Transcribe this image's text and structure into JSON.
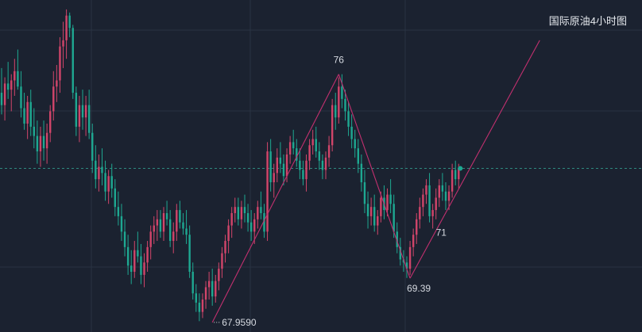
{
  "chart_data": {
    "type": "candlestick",
    "title": "国际原油4小时图",
    "colors": {
      "background": "#1b2230",
      "grid": "#2a3342",
      "up": "#d1456a",
      "down": "#1ea891",
      "trendline": "#c2306f",
      "price_line": "#2e8a7f",
      "text": "#d5d9e0"
    },
    "ylim": [
      67.7,
      78.2
    ],
    "current_price": 72.95,
    "annotations": [
      {
        "text": "67.9590",
        "index": 65
      },
      {
        "text": "76",
        "index": 104
      },
      {
        "text": "69.39",
        "index": 126
      },
      {
        "text": "71",
        "index": 133
      }
    ],
    "trendlines": [
      {
        "from": [
          65,
          67.96
        ],
        "to": [
          104,
          76.0
        ]
      },
      {
        "from": [
          104,
          76.0
        ],
        "to": [
          126,
          69.39
        ]
      },
      {
        "from": [
          126,
          69.39
        ],
        "to": [
          166,
          77.1
        ]
      }
    ],
    "candles": [
      [
        75.4,
        76.2,
        74.7,
        75.0
      ],
      [
        75.0,
        75.9,
        74.5,
        75.7
      ],
      [
        75.7,
        76.4,
        75.2,
        75.5
      ],
      [
        75.5,
        76.0,
        74.8,
        75.8
      ],
      [
        75.8,
        76.5,
        75.3,
        76.1
      ],
      [
        76.1,
        76.8,
        75.5,
        75.6
      ],
      [
        75.6,
        76.1,
        74.6,
        74.9
      ],
      [
        74.9,
        75.4,
        74.2,
        74.4
      ],
      [
        74.4,
        75.3,
        73.9,
        75.1
      ],
      [
        75.1,
        75.5,
        74.0,
        74.3
      ],
      [
        74.3,
        74.9,
        73.6,
        74.0
      ],
      [
        74.0,
        74.5,
        73.1,
        73.5
      ],
      [
        73.5,
        74.3,
        73.0,
        74.0
      ],
      [
        74.0,
        74.5,
        73.2,
        73.6
      ],
      [
        73.6,
        74.4,
        73.1,
        74.1
      ],
      [
        74.1,
        75.0,
        73.8,
        74.8
      ],
      [
        74.8,
        76.1,
        74.5,
        75.6
      ],
      [
        75.6,
        76.3,
        75.1,
        75.8
      ],
      [
        75.8,
        77.2,
        75.4,
        76.9
      ],
      [
        76.9,
        77.7,
        76.2,
        77.1
      ],
      [
        77.1,
        78.1,
        76.5,
        77.9
      ],
      [
        77.9,
        78.0,
        77.2,
        77.5
      ],
      [
        77.5,
        77.6,
        75.2,
        75.4
      ],
      [
        75.4,
        75.6,
        74.0,
        74.3
      ],
      [
        74.3,
        75.3,
        73.8,
        75.0
      ],
      [
        75.0,
        75.5,
        74.2,
        74.6
      ],
      [
        74.6,
        75.3,
        74.0,
        75.0
      ],
      [
        75.0,
        75.5,
        73.9,
        74.1
      ],
      [
        74.1,
        74.4,
        72.8,
        73.2
      ],
      [
        73.2,
        73.7,
        72.3,
        72.6
      ],
      [
        72.6,
        73.4,
        72.2,
        73.0
      ],
      [
        73.0,
        73.6,
        72.4,
        72.8
      ],
      [
        72.8,
        73.2,
        71.9,
        72.2
      ],
      [
        72.2,
        72.9,
        71.8,
        72.7
      ],
      [
        72.7,
        73.1,
        72.0,
        72.3
      ],
      [
        72.3,
        72.6,
        71.4,
        71.7
      ],
      [
        71.7,
        72.2,
        71.1,
        71.4
      ],
      [
        71.4,
        71.8,
        70.6,
        70.9
      ],
      [
        70.9,
        71.3,
        70.1,
        70.4
      ],
      [
        70.4,
        70.8,
        69.5,
        69.8
      ],
      [
        69.8,
        70.3,
        69.2,
        69.6
      ],
      [
        69.6,
        70.6,
        69.4,
        70.3
      ],
      [
        70.3,
        70.9,
        69.9,
        70.1
      ],
      [
        70.1,
        70.5,
        69.2,
        69.5
      ],
      [
        69.5,
        70.2,
        69.1,
        69.9
      ],
      [
        69.9,
        70.6,
        69.6,
        70.4
      ],
      [
        70.4,
        71.1,
        70.0,
        70.9
      ],
      [
        70.9,
        71.4,
        70.5,
        71.1
      ],
      [
        71.1,
        71.6,
        70.6,
        71.3
      ],
      [
        71.3,
        71.6,
        70.7,
        70.9
      ],
      [
        70.9,
        71.7,
        70.6,
        71.5
      ],
      [
        71.5,
        71.9,
        71.1,
        71.3
      ],
      [
        71.3,
        71.6,
        70.4,
        70.6
      ],
      [
        70.6,
        71.2,
        70.2,
        70.9
      ],
      [
        70.9,
        71.8,
        70.6,
        71.6
      ],
      [
        71.6,
        71.9,
        71.0,
        71.2
      ],
      [
        71.2,
        71.5,
        70.8,
        71.0
      ],
      [
        71.0,
        71.6,
        70.5,
        70.8
      ],
      [
        70.8,
        71.1,
        69.4,
        69.6
      ],
      [
        69.6,
        69.9,
        68.7,
        68.9
      ],
      [
        68.9,
        69.2,
        68.3,
        68.6
      ],
      [
        68.6,
        68.9,
        68.0,
        68.3
      ],
      [
        68.3,
        68.9,
        68.1,
        68.7
      ],
      [
        68.7,
        69.3,
        68.4,
        69.1
      ],
      [
        69.1,
        69.6,
        68.7,
        69.3
      ],
      [
        69.3,
        69.7,
        68.5,
        68.8
      ],
      [
        68.8,
        69.5,
        68.6,
        69.3
      ],
      [
        69.3,
        69.9,
        69.0,
        69.7
      ],
      [
        69.7,
        70.4,
        69.4,
        70.2
      ],
      [
        70.2,
        70.8,
        69.9,
        70.6
      ],
      [
        70.6,
        71.3,
        70.2,
        71.1
      ],
      [
        71.1,
        71.7,
        70.7,
        71.5
      ],
      [
        71.5,
        72.0,
        71.2,
        71.7
      ],
      [
        71.7,
        72.0,
        71.1,
        71.3
      ],
      [
        71.3,
        71.9,
        71.0,
        71.7
      ],
      [
        71.7,
        72.1,
        71.2,
        71.5
      ],
      [
        71.5,
        71.8,
        70.9,
        71.2
      ],
      [
        71.2,
        71.6,
        70.6,
        70.9
      ],
      [
        70.9,
        71.5,
        70.5,
        71.3
      ],
      [
        71.3,
        71.9,
        71.0,
        71.7
      ],
      [
        71.7,
        72.2,
        71.3,
        71.5
      ],
      [
        71.5,
        71.8,
        70.7,
        70.9
      ],
      [
        70.9,
        73.8,
        70.6,
        73.5
      ],
      [
        73.5,
        73.9,
        72.2,
        72.5
      ],
      [
        72.5,
        73.1,
        72.0,
        72.8
      ],
      [
        72.8,
        73.6,
        72.5,
        73.3
      ],
      [
        73.3,
        73.8,
        72.8,
        73.1
      ],
      [
        73.1,
        73.4,
        72.4,
        72.7
      ],
      [
        72.7,
        73.6,
        72.5,
        73.4
      ],
      [
        73.4,
        74.0,
        73.1,
        73.8
      ],
      [
        73.8,
        74.2,
        73.4,
        73.6
      ],
      [
        73.6,
        73.9,
        73.0,
        73.2
      ],
      [
        73.2,
        73.6,
        72.6,
        72.9
      ],
      [
        72.9,
        73.2,
        72.4,
        72.6
      ],
      [
        72.6,
        73.4,
        72.2,
        73.2
      ],
      [
        73.2,
        73.9,
        72.9,
        73.7
      ],
      [
        73.7,
        74.2,
        73.4,
        73.9
      ],
      [
        73.9,
        74.3,
        73.3,
        73.5
      ],
      [
        73.5,
        73.8,
        72.9,
        73.2
      ],
      [
        73.2,
        73.4,
        72.6,
        72.9
      ],
      [
        72.9,
        73.5,
        72.6,
        73.3
      ],
      [
        73.3,
        74.0,
        73.0,
        73.7
      ],
      [
        73.7,
        75.2,
        73.5,
        75.0
      ],
      [
        75.0,
        75.4,
        74.2,
        74.6
      ],
      [
        74.6,
        75.9,
        74.4,
        75.6
      ],
      [
        75.6,
        76.0,
        74.9,
        75.2
      ],
      [
        75.2,
        75.5,
        74.5,
        74.8
      ],
      [
        74.8,
        75.1,
        74.0,
        74.3
      ],
      [
        74.3,
        74.7,
        73.6,
        73.9
      ],
      [
        73.9,
        74.2,
        73.3,
        73.6
      ],
      [
        73.6,
        73.9,
        72.8,
        73.1
      ],
      [
        73.1,
        73.4,
        72.2,
        72.5
      ],
      [
        72.5,
        72.9,
        71.5,
        71.8
      ],
      [
        71.8,
        72.2,
        71.0,
        71.4
      ],
      [
        71.4,
        72.0,
        71.1,
        71.7
      ],
      [
        71.7,
        72.1,
        70.9,
        71.1
      ],
      [
        71.1,
        71.6,
        70.8,
        71.4
      ],
      [
        71.4,
        72.2,
        71.2,
        72.0
      ],
      [
        72.0,
        72.4,
        71.3,
        71.6
      ],
      [
        71.6,
        72.3,
        71.4,
        72.1
      ],
      [
        72.1,
        72.6,
        71.5,
        71.8
      ],
      [
        71.8,
        72.1,
        70.7,
        70.9
      ],
      [
        70.9,
        71.2,
        70.2,
        70.4
      ],
      [
        70.4,
        70.7,
        69.8,
        70.0
      ],
      [
        70.0,
        70.3,
        69.6,
        69.9
      ],
      [
        69.9,
        70.1,
        69.4,
        69.7
      ],
      [
        69.7,
        70.6,
        69.5,
        70.4
      ],
      [
        70.4,
        71.0,
        70.1,
        70.8
      ],
      [
        70.8,
        71.5,
        70.5,
        71.3
      ],
      [
        71.3,
        72.0,
        71.0,
        71.7
      ],
      [
        71.7,
        72.3,
        71.4,
        72.1
      ],
      [
        72.1,
        72.6,
        71.8,
        72.4
      ],
      [
        72.4,
        72.8,
        71.2,
        71.4
      ],
      [
        71.4,
        71.8,
        71.0,
        71.6
      ],
      [
        71.6,
        72.3,
        71.3,
        72.0
      ],
      [
        72.0,
        72.6,
        71.7,
        72.4
      ],
      [
        72.4,
        72.8,
        71.9,
        72.2
      ],
      [
        72.2,
        72.5,
        71.6,
        71.9
      ],
      [
        71.9,
        72.4,
        71.6,
        72.2
      ],
      [
        72.2,
        73.1,
        72.0,
        72.9
      ],
      [
        72.9,
        73.2,
        72.4,
        72.6
      ],
      [
        72.6,
        73.1,
        72.3,
        72.95
      ]
    ]
  }
}
